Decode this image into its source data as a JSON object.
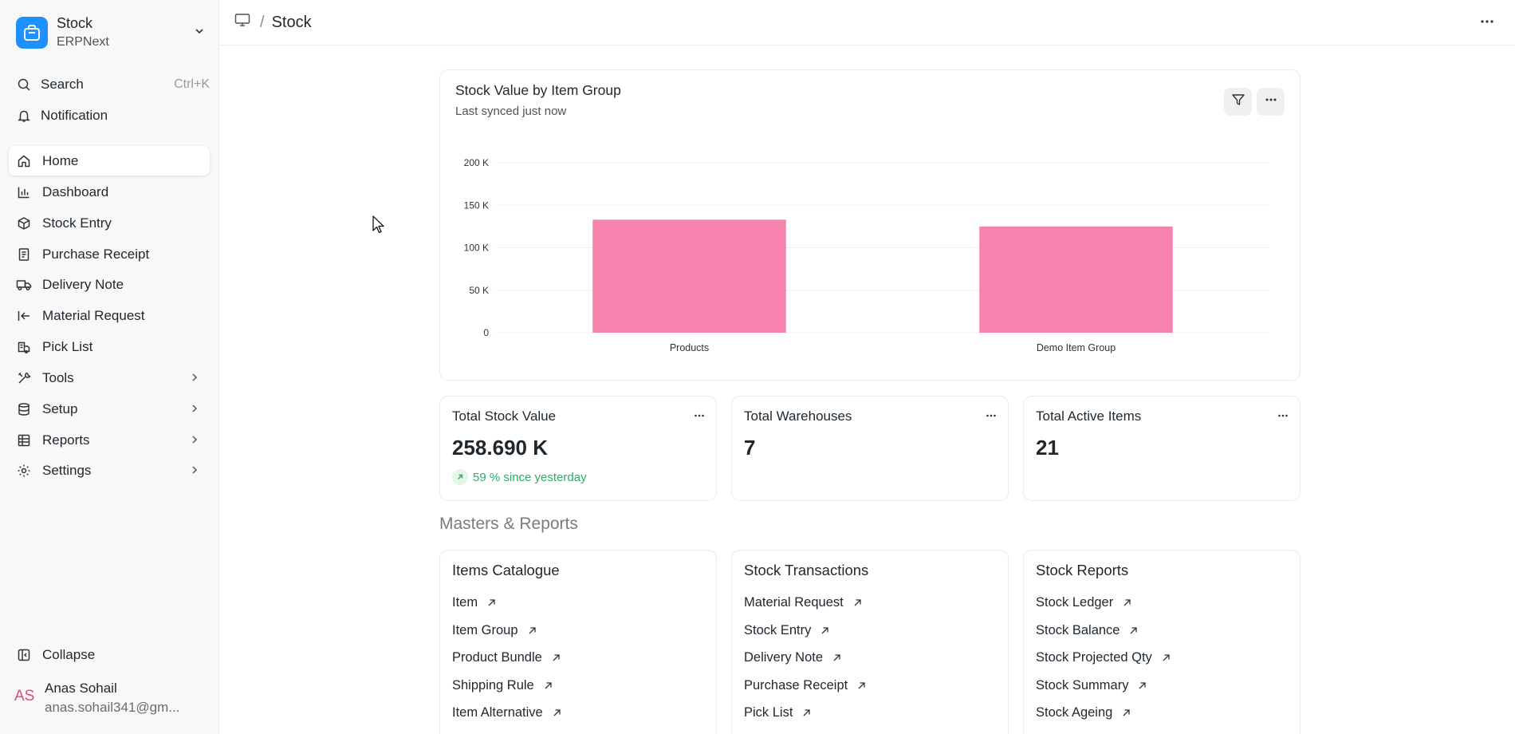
{
  "app": {
    "name": "Stock",
    "subtitle": "ERPNext"
  },
  "sidebar": {
    "search": {
      "label": "Search",
      "shortcut": "Ctrl+K"
    },
    "notification": {
      "label": "Notification"
    },
    "items": [
      {
        "label": "Home",
        "icon": "home-icon"
      },
      {
        "label": "Dashboard",
        "icon": "bar-chart-icon"
      },
      {
        "label": "Stock Entry",
        "icon": "box-icon"
      },
      {
        "label": "Purchase Receipt",
        "icon": "receipt-icon"
      },
      {
        "label": "Delivery Note",
        "icon": "truck-icon"
      },
      {
        "label": "Material Request",
        "icon": "arrow-left-bar-icon"
      },
      {
        "label": "Pick List",
        "icon": "pick-list-icon"
      },
      {
        "label": "Tools",
        "icon": "tools-icon"
      },
      {
        "label": "Setup",
        "icon": "database-icon"
      },
      {
        "label": "Reports",
        "icon": "table-icon"
      },
      {
        "label": "Settings",
        "icon": "gear-icon"
      }
    ],
    "collapse": "Collapse",
    "user": {
      "initials": "AS",
      "name": "Anas Sohail",
      "email": "anas.sohail341@gm..."
    }
  },
  "header": {
    "breadcrumb_sep": "/",
    "title": "Stock"
  },
  "chart_card": {
    "title": "Stock Value by Item Group",
    "subtitle": "Last synced just now"
  },
  "chart_data": {
    "type": "bar",
    "categories": [
      "Products",
      "Demo Item Group"
    ],
    "values": [
      133000,
      125000
    ],
    "yticks": [
      "0",
      "50 K",
      "100 K",
      "150 K",
      "200 K"
    ],
    "ylim": [
      0,
      200000
    ],
    "title": "Stock Value by Item Group",
    "xlabel": "",
    "ylabel": "",
    "grid": true,
    "color": "#f683ae"
  },
  "number_cards": [
    {
      "title": "Total Stock Value",
      "value": "258.690 K",
      "trend": "59 % since yesterday"
    },
    {
      "title": "Total Warehouses",
      "value": "7"
    },
    {
      "title": "Total Active Items",
      "value": "21"
    }
  ],
  "section_title": "Masters & Reports",
  "link_cards": [
    {
      "title": "Items Catalogue",
      "links": [
        "Item",
        "Item Group",
        "Product Bundle",
        "Shipping Rule",
        "Item Alternative"
      ]
    },
    {
      "title": "Stock Transactions",
      "links": [
        "Material Request",
        "Stock Entry",
        "Delivery Note",
        "Purchase Receipt",
        "Pick List"
      ]
    },
    {
      "title": "Stock Reports",
      "links": [
        "Stock Ledger",
        "Stock Balance",
        "Stock Projected Qty",
        "Stock Summary",
        "Stock Ageing"
      ]
    }
  ]
}
